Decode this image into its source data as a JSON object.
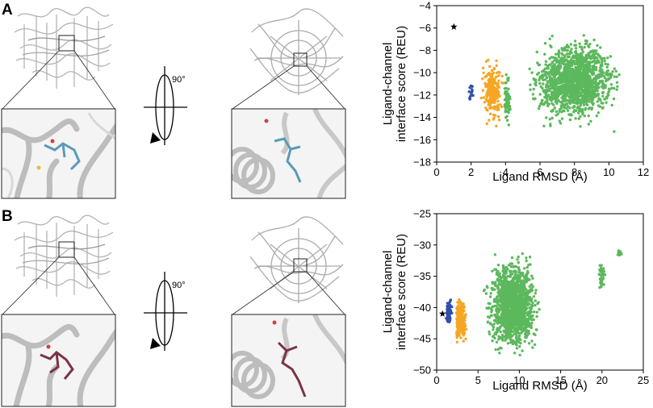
{
  "panels": [
    {
      "letter": "A",
      "rotation_label": "90°"
    },
    {
      "letter": "B",
      "rotation_label": "90°"
    }
  ],
  "colors": {
    "blue": "#2f4fa8",
    "orange": "#f5a623",
    "green": "#5cb85c",
    "ribbon": "#b8b8b8",
    "ligand_A": "#5a9ab8",
    "ligand_B": "#7a3345"
  },
  "chart_data": [
    {
      "type": "scatter",
      "panel": "A",
      "title": "",
      "xlabel": "Ligand RMSD (Å)",
      "ylabel": "Ligand-channel interface score (REU)",
      "ylabel_lines": [
        "Ligand-channel",
        "interface score (REU)"
      ],
      "xlim": [
        0,
        12
      ],
      "ylim": [
        -18,
        -4
      ],
      "xticks": [
        0,
        2,
        4,
        6,
        8,
        10,
        12
      ],
      "yticks": [
        -18,
        -16,
        -14,
        -12,
        -10,
        -8,
        -6,
        -4
      ],
      "star": {
        "x": 1.0,
        "y": -5.9
      },
      "clusters": [
        {
          "color": "blue",
          "x_range": [
            1.8,
            2.2
          ],
          "y_range": [
            -14.5,
            -9.5
          ]
        },
        {
          "color": "orange",
          "x_range": [
            2.4,
            4.1
          ],
          "y_range": [
            -15.8,
            -7.6
          ]
        },
        {
          "color": "green",
          "x_range": [
            3.8,
            4.4
          ],
          "y_range": [
            -15.8,
            -9.0
          ]
        },
        {
          "color": "green",
          "x_range": [
            4.5,
            11.5
          ],
          "y_range": [
            -16.0,
            -5.5
          ]
        }
      ]
    },
    {
      "type": "scatter",
      "panel": "B",
      "title": "",
      "xlabel": "Ligand RMSD (Å)",
      "ylabel": "Ligand-channel interface score (REU)",
      "ylabel_lines": [
        "Ligand-channel",
        "interface score (REU)"
      ],
      "xlim": [
        0,
        25
      ],
      "ylim": [
        -50,
        -25
      ],
      "xticks": [
        0,
        5,
        10,
        15,
        20,
        25
      ],
      "yticks": [
        -50,
        -45,
        -40,
        -35,
        -30,
        -25
      ],
      "star": {
        "x": 0.7,
        "y": -41.0
      },
      "clusters": [
        {
          "color": "blue",
          "x_range": [
            1.0,
            2.0
          ],
          "y_range": [
            -43.5,
            -37.5
          ]
        },
        {
          "color": "orange",
          "x_range": [
            2.0,
            3.8
          ],
          "y_range": [
            -46.5,
            -37.5
          ]
        },
        {
          "color": "green",
          "x_range": [
            5.0,
            13.5
          ],
          "y_range": [
            -50.0,
            -29.5
          ]
        },
        {
          "color": "green",
          "x_range": [
            19.5,
            20.5
          ],
          "y_range": [
            -38.0,
            -32.0
          ]
        },
        {
          "color": "green",
          "x_range": [
            21.8,
            22.5
          ],
          "y_range": [
            -32.0,
            -30.5
          ]
        }
      ]
    }
  ]
}
